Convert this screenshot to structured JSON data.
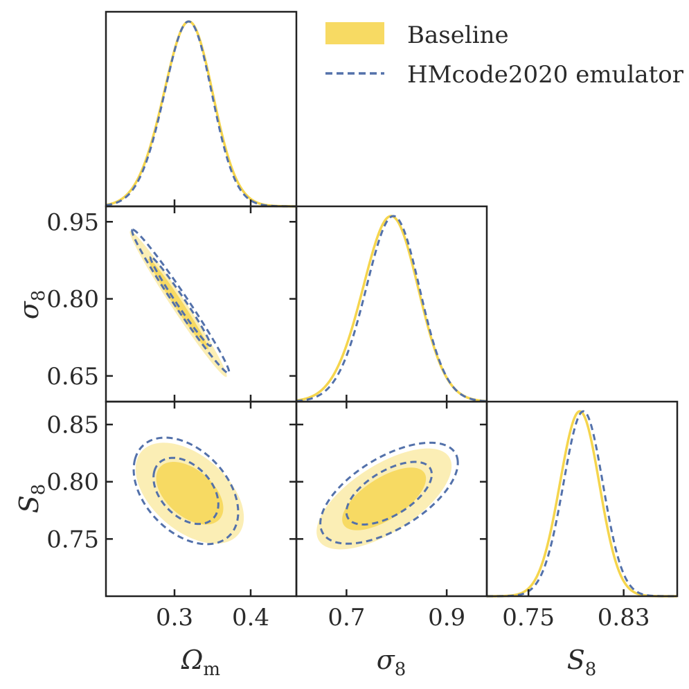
{
  "chart_data": {
    "type": "corner",
    "parameters": [
      "Omega_m",
      "sigma_8",
      "S_8"
    ],
    "axis_labels": {
      "Omega_m": {
        "main": "Ω",
        "sub": "m"
      },
      "sigma_8": {
        "main": "σ",
        "sub": "8"
      },
      "S_8": {
        "main": "S",
        "sub": "8"
      }
    },
    "ranges": {
      "Omega_m": [
        0.21,
        0.46
      ],
      "sigma_8": [
        0.6,
        0.98
      ],
      "S_8": [
        0.7,
        0.87
      ]
    },
    "s8_diag_range": [
      0.715,
      0.875
    ],
    "ticks": {
      "Omega_m": [
        {
          "v": 0.3,
          "label": "0.3"
        },
        {
          "v": 0.4,
          "label": "0.4"
        }
      ],
      "sigma_8_x": [
        {
          "v": 0.7,
          "label": "0.7"
        },
        {
          "v": 0.9,
          "label": "0.9"
        }
      ],
      "sigma_8_y": [
        {
          "v": 0.95,
          "label": "0.95"
        },
        {
          "v": 0.8,
          "label": "0.80"
        },
        {
          "v": 0.65,
          "label": "0.65"
        }
      ],
      "S_8_x": [
        {
          "v": 0.75,
          "label": "0.75"
        },
        {
          "v": 0.83,
          "label": "0.83"
        }
      ],
      "S_8_y": [
        {
          "v": 0.85,
          "label": "0.85"
        },
        {
          "v": 0.8,
          "label": "0.80"
        },
        {
          "v": 0.75,
          "label": "0.75"
        }
      ]
    },
    "legend": {
      "location": "top-right",
      "entries": [
        {
          "name": "Baseline",
          "style": "filled"
        },
        {
          "name": "HMcode2020 emulator",
          "style": "dashed"
        }
      ]
    },
    "series": [
      {
        "name": "Baseline",
        "marginals": {
          "Omega_m": {
            "mean": 0.31,
            "sigma": 0.034,
            "skew": 1.2
          },
          "sigma_8": {
            "mean": 0.775,
            "sigma": 0.058,
            "skew": 1.1
          },
          "S_8": {
            "mean": 0.79,
            "sigma": 0.017,
            "skew": 0.8
          }
        },
        "contours_68_95": {
          "Omega_m-sigma_8": {
            "cx": 0.305,
            "cy": 0.79,
            "sx": 0.026,
            "sy": 0.058,
            "rho": -0.985
          },
          "Omega_m-S_8": {
            "cx": 0.32,
            "cy": 0.79,
            "sx": 0.029,
            "sy": 0.018,
            "rho": -0.48
          },
          "sigma_8-S_8": {
            "cx": 0.775,
            "cy": 0.785,
            "sx": 0.055,
            "sy": 0.018,
            "rho": 0.65
          }
        }
      },
      {
        "name": "HMcode2020 emulator",
        "marginals": {
          "Omega_m": {
            "mean": 0.31,
            "sigma": 0.033,
            "skew": 1.2
          },
          "sigma_8": {
            "mean": 0.78,
            "sigma": 0.056,
            "skew": 1.1
          },
          "S_8": {
            "mean": 0.793,
            "sigma": 0.017,
            "skew": 0.8
          }
        },
        "contours_68_95": {
          "Omega_m-sigma_8": {
            "cx": 0.308,
            "cy": 0.795,
            "sx": 0.026,
            "sy": 0.057,
            "rho": -0.985
          },
          "Omega_m-S_8": {
            "cx": 0.315,
            "cy": 0.792,
            "sx": 0.028,
            "sy": 0.019,
            "rho": -0.4
          },
          "sigma_8-S_8": {
            "cx": 0.785,
            "cy": 0.79,
            "sx": 0.056,
            "sy": 0.018,
            "rho": 0.6
          }
        }
      }
    ],
    "colors": {
      "baseline_fill_inner": "#f7da63",
      "baseline_fill_outer": "#fbeeb5",
      "baseline_line": "#f5d54d",
      "emulator_line": "#5371aa",
      "frame": "#222222"
    }
  }
}
